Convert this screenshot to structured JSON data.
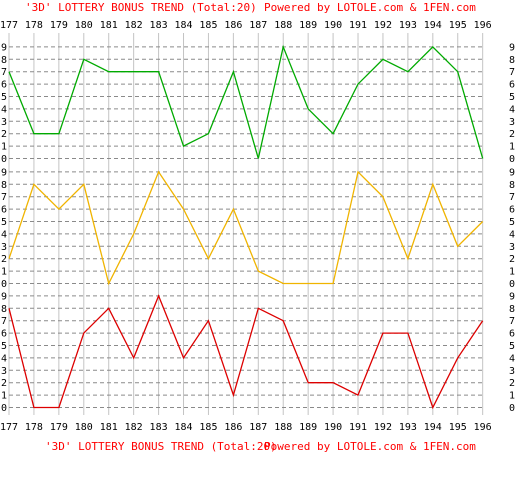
{
  "chart_data": {
    "type": "line",
    "title": "'3D' LOTTERY BONUS TREND (Total:20)",
    "credit": "Powered by LOTOLE.com & 1FEN.com",
    "categories": [
      "177",
      "178",
      "179",
      "180",
      "181",
      "182",
      "183",
      "184",
      "185",
      "186",
      "187",
      "188",
      "189",
      "190",
      "191",
      "192",
      "193",
      "194",
      "195",
      "196"
    ],
    "ylim": [
      0,
      9
    ],
    "y_ticks": [
      "0",
      "1",
      "2",
      "3",
      "4",
      "5",
      "6",
      "7",
      "8",
      "9"
    ],
    "grid": true,
    "series": [
      {
        "color": "#00aa00",
        "values": [
          7,
          2,
          2,
          8,
          7,
          7,
          7,
          1,
          2,
          7,
          0,
          9,
          4,
          2,
          6,
          8,
          7,
          9,
          7,
          0
        ]
      },
      {
        "color": "#f0b400",
        "values": [
          2,
          8,
          6,
          8,
          0,
          4,
          9,
          6,
          2,
          6,
          1,
          0,
          0,
          0,
          9,
          7,
          2,
          8,
          3,
          5
        ]
      },
      {
        "color": "#dd0000",
        "values": [
          8,
          0,
          0,
          6,
          8,
          4,
          9,
          4,
          7,
          1,
          8,
          7,
          2,
          2,
          1,
          6,
          6,
          0,
          4,
          7
        ]
      }
    ]
  }
}
